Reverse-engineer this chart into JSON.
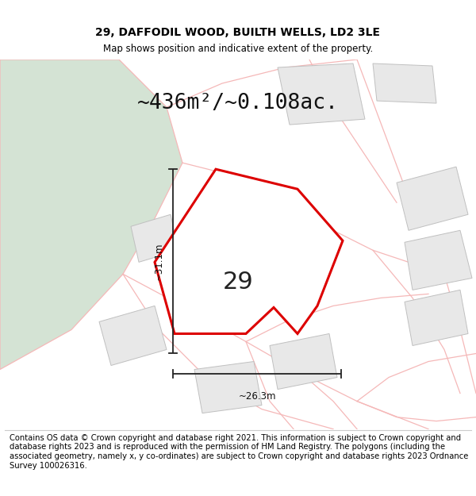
{
  "title": "29, DAFFODIL WOOD, BUILTH WELLS, LD2 3LE",
  "subtitle": "Map shows position and indicative extent of the property.",
  "area_text": "~436m²/~0.108ac.",
  "label_number": "29",
  "dim_width": "~26.3m",
  "dim_height": "~31.1m",
  "footer": "Contains OS data © Crown copyright and database right 2021. This information is subject to Crown copyright and database rights 2023 and is reproduced with the permission of HM Land Registry. The polygons (including the associated geometry, namely x, y co-ordinates) are subject to Crown copyright and database rights 2023 Ordnance Survey 100026316.",
  "bg_color": "#ffffff",
  "map_bg": "#ffffff",
  "green_patch_color": "#d4e3d4",
  "red_outline_color": "#dd0000",
  "light_red_color": "#f5b8b8",
  "gray_fill_color": "#e8e8e8",
  "gray_outline_color": "#c0c0c0",
  "footer_fontsize": 7.2,
  "title_fontsize": 10,
  "subtitle_fontsize": 8.5,
  "area_fontsize": 19,
  "dim_fontsize": 8.5,
  "label_fontsize": 22
}
